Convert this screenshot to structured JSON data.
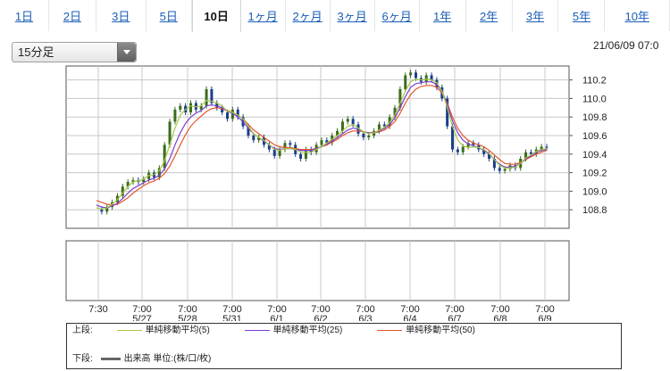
{
  "tabs": [
    {
      "label": "1日",
      "active": false
    },
    {
      "label": "2日",
      "active": false
    },
    {
      "label": "3日",
      "active": false
    },
    {
      "label": "5日",
      "active": false
    },
    {
      "label": "10日",
      "active": true
    },
    {
      "label": "1ヶ月",
      "active": false
    },
    {
      "label": "2ヶ月",
      "active": false
    },
    {
      "label": "3ヶ月",
      "active": false
    },
    {
      "label": "6ヶ月",
      "active": false
    },
    {
      "label": "1年",
      "active": false
    },
    {
      "label": "2年",
      "active": false
    },
    {
      "label": "3年",
      "active": false
    },
    {
      "label": "5年",
      "active": false
    },
    {
      "label": "10年",
      "active": false
    }
  ],
  "interval_select": {
    "value": "15分足"
  },
  "timestamp": "21/06/09 07:0",
  "legend": {
    "upper_label": "上段:",
    "lower_label": "下段:",
    "ma5": "単純移動平均(5)",
    "ma25": "単純移動平均(25)",
    "ma50": "単純移動平均(50)",
    "volume": "出来高 単位:(株/口/枚)"
  },
  "colors": {
    "ma5": "#a7c84a",
    "ma25": "#7a3fd1",
    "ma50": "#e3562c",
    "up": "#3b6c1c",
    "down": "#1a3f8a",
    "volume": "#666666",
    "link": "#1a5eb8"
  },
  "chart_data": {
    "type": "line",
    "ylim": [
      108.6,
      110.35
    ],
    "yticks": [
      "110.2",
      "110.0",
      "109.8",
      "109.6",
      "109.4",
      "109.2",
      "109.0",
      "108.8"
    ],
    "xticks": [
      {
        "time": "7:30",
        "date": ""
      },
      {
        "time": "7:00",
        "date": "5/27"
      },
      {
        "time": "7:00",
        "date": "5/28"
      },
      {
        "time": "7:00",
        "date": "5/31"
      },
      {
        "time": "7:00",
        "date": "6/1"
      },
      {
        "time": "7:00",
        "date": "6/2"
      },
      {
        "time": "7:00",
        "date": "6/3"
      },
      {
        "time": "7:00",
        "date": "6/4"
      },
      {
        "time": "7:00",
        "date": "6/7"
      },
      {
        "time": "7:00",
        "date": "6/8"
      },
      {
        "time": "7:00",
        "date": "6/9"
      }
    ],
    "price": [
      108.8,
      108.78,
      108.83,
      108.88,
      108.95,
      109.05,
      109.1,
      109.12,
      109.1,
      109.13,
      109.2,
      109.15,
      109.25,
      109.5,
      109.75,
      109.88,
      109.92,
      109.85,
      109.95,
      109.88,
      109.92,
      110.1,
      109.95,
      109.9,
      109.85,
      109.78,
      109.88,
      109.8,
      109.7,
      109.6,
      109.55,
      109.58,
      109.5,
      109.45,
      109.38,
      109.45,
      109.52,
      109.5,
      109.4,
      109.35,
      109.45,
      109.42,
      109.5,
      109.55,
      109.52,
      109.6,
      109.65,
      109.75,
      109.78,
      109.72,
      109.62,
      109.58,
      109.6,
      109.65,
      109.72,
      109.7,
      109.8,
      109.9,
      110.1,
      110.25,
      110.28,
      110.22,
      110.18,
      110.25,
      110.2,
      110.12,
      110.0,
      109.7,
      109.45,
      109.42,
      109.48,
      109.52,
      109.5,
      109.45,
      109.4,
      109.35,
      109.25,
      109.22,
      109.24,
      109.28,
      109.25,
      109.35,
      109.42,
      109.4,
      109.45,
      109.48,
      109.47
    ],
    "ma5": [
      108.82,
      108.81,
      108.82,
      108.86,
      108.91,
      108.98,
      109.05,
      109.1,
      109.11,
      109.13,
      109.17,
      109.18,
      109.22,
      109.33,
      109.5,
      109.68,
      109.82,
      109.88,
      109.92,
      109.91,
      109.92,
      109.98,
      109.97,
      109.95,
      109.92,
      109.86,
      109.85,
      109.82,
      109.78,
      109.7,
      109.62,
      109.58,
      109.55,
      109.5,
      109.45,
      109.44,
      109.46,
      109.46,
      109.45,
      109.42,
      109.42,
      109.42,
      109.45,
      109.48,
      109.52,
      109.56,
      109.6,
      109.65,
      109.7,
      109.72,
      109.68,
      109.64,
      109.62,
      109.63,
      109.66,
      109.69,
      109.74,
      109.82,
      109.95,
      110.08,
      110.18,
      110.21,
      110.2,
      110.21,
      110.2,
      110.17,
      110.08,
      109.9,
      109.7,
      109.55,
      109.49,
      109.47,
      109.48,
      109.47,
      109.45,
      109.41,
      109.34,
      109.28,
      109.25,
      109.25,
      109.26,
      109.3,
      109.36,
      109.39,
      109.43,
      109.45,
      109.46
    ],
    "ma25": [
      108.85,
      108.83,
      108.82,
      108.84,
      108.87,
      108.92,
      108.98,
      109.03,
      109.06,
      109.09,
      109.12,
      109.14,
      109.17,
      109.24,
      109.35,
      109.5,
      109.63,
      109.73,
      109.8,
      109.84,
      109.87,
      109.92,
      109.93,
      109.92,
      109.9,
      109.86,
      109.84,
      109.8,
      109.75,
      109.68,
      109.62,
      109.58,
      109.54,
      109.5,
      109.46,
      109.45,
      109.46,
      109.46,
      109.45,
      109.44,
      109.44,
      109.44,
      109.46,
      109.48,
      109.51,
      109.54,
      109.58,
      109.62,
      109.66,
      109.68,
      109.67,
      109.64,
      109.63,
      109.63,
      109.65,
      109.68,
      109.72,
      109.79,
      109.9,
      110.02,
      110.12,
      110.16,
      110.17,
      110.18,
      110.18,
      110.15,
      110.08,
      109.93,
      109.76,
      109.63,
      109.55,
      109.51,
      109.49,
      109.47,
      109.44,
      109.4,
      109.34,
      109.29,
      109.26,
      109.26,
      109.27,
      109.3,
      109.35,
      109.38,
      109.42,
      109.44,
      109.45
    ],
    "ma50": [
      108.9,
      108.88,
      108.86,
      108.85,
      108.86,
      108.89,
      108.93,
      108.98,
      109.02,
      109.06,
      109.09,
      109.11,
      109.14,
      109.19,
      109.27,
      109.38,
      109.5,
      109.61,
      109.7,
      109.76,
      109.81,
      109.86,
      109.89,
      109.9,
      109.89,
      109.87,
      109.85,
      109.82,
      109.78,
      109.72,
      109.66,
      109.62,
      109.58,
      109.54,
      109.5,
      109.48,
      109.47,
      109.47,
      109.46,
      109.45,
      109.45,
      109.45,
      109.46,
      109.48,
      109.5,
      109.53,
      109.56,
      109.6,
      109.63,
      109.65,
      109.65,
      109.64,
      109.63,
      109.63,
      109.64,
      109.66,
      109.7,
      109.75,
      109.84,
      109.95,
      110.04,
      110.1,
      110.13,
      110.14,
      110.14,
      110.12,
      110.06,
      109.95,
      109.8,
      109.68,
      109.6,
      109.55,
      109.52,
      109.5,
      109.48,
      109.44,
      109.39,
      109.34,
      109.3,
      109.29,
      109.29,
      109.31,
      109.34,
      109.37,
      109.4,
      109.42,
      109.44
    ]
  }
}
